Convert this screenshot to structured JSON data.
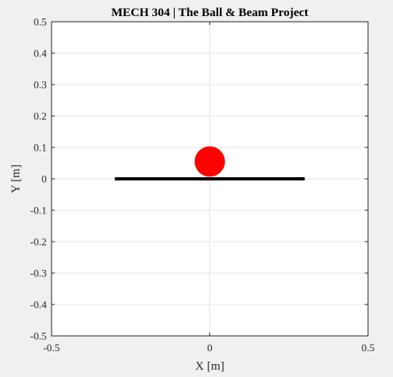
{
  "chart_data": {
    "type": "scatter",
    "title": "MECH 304 | The Ball & Beam Project",
    "xlabel": "X [m]",
    "ylabel": "Y [m]",
    "xlim": [
      -0.5,
      0.5
    ],
    "ylim": [
      -0.5,
      0.5
    ],
    "xticks": [
      -0.5,
      0,
      0.5
    ],
    "xtick_labels": [
      "-0.5",
      "0",
      "0.5"
    ],
    "yticks": [
      0.5,
      0.4,
      0.3,
      0.2,
      0.1,
      0,
      -0.1,
      -0.2,
      -0.3,
      -0.4,
      -0.5
    ],
    "ytick_labels": [
      "0.5",
      "0.4",
      "0.3",
      "0.2",
      "0.1",
      "0",
      "-0.1",
      "-0.2",
      "-0.3",
      "-0.4",
      "-0.5"
    ],
    "grid": true,
    "beam": {
      "x": [
        -0.3,
        0.3
      ],
      "y": [
        0,
        0
      ],
      "color": "#000000"
    },
    "ball": {
      "x": 0,
      "y": 0.055,
      "radius": 0.05,
      "color": "#ff0000"
    },
    "colors": {
      "figure_background": "#f0f0f0",
      "axes_background": "#ffffff",
      "grid": "#e6e6e6",
      "axis": "#262626"
    }
  }
}
